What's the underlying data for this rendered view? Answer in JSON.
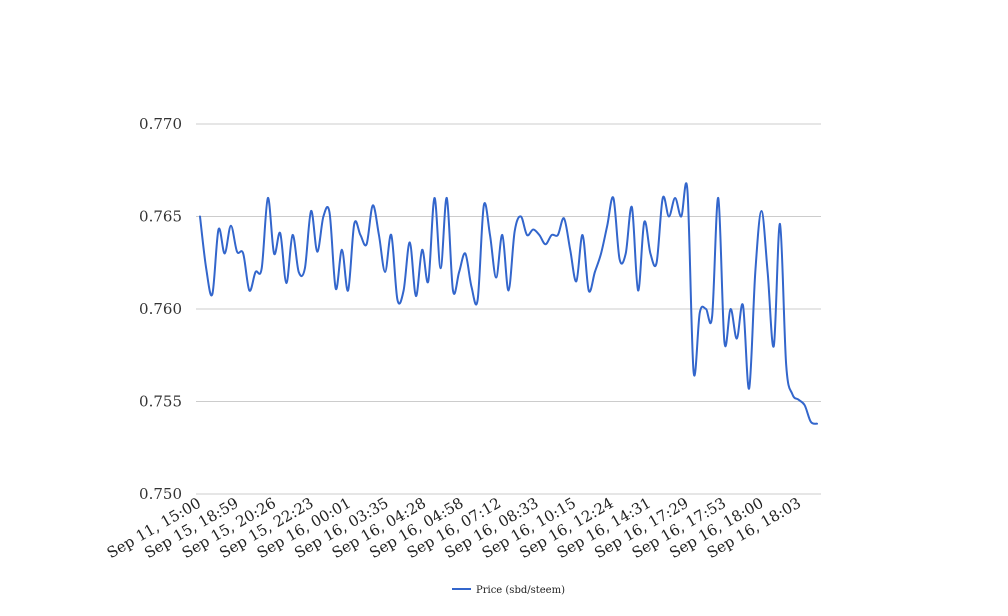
{
  "chart_data": {
    "type": "line",
    "title": "",
    "xlabel": "",
    "ylabel": "",
    "ylim": [
      0.75,
      0.77
    ],
    "yticks": [
      "0.770",
      "0.765",
      "0.760",
      "0.755",
      "0.750"
    ],
    "ytick_values": [
      0.77,
      0.765,
      0.76,
      0.755,
      0.75
    ],
    "xtick_labels": [
      "Sep 11, 15:00",
      "Sep 15, 18:59",
      "Sep 15, 20:26",
      "Sep 15, 22:23",
      "Sep 16, 00:01",
      "Sep 16, 03:35",
      "Sep 16, 04:28",
      "Sep 16, 04:58",
      "Sep 16, 07:12",
      "Sep 16, 08:33",
      "Sep 16, 10:15",
      "Sep 16, 12:24",
      "Sep 16, 14:31",
      "Sep 16, 17:29",
      "Sep 16, 17:53",
      "Sep 16, 18:00",
      "Sep 16, 18:03"
    ],
    "grid": true,
    "legend_position": "bottom",
    "series": [
      {
        "name": "Price (sbd/steem)",
        "color": "#3366cc",
        "values": [
          0.765,
          0.7622,
          0.7608,
          0.7643,
          0.763,
          0.7645,
          0.7631,
          0.763,
          0.761,
          0.762,
          0.7622,
          0.766,
          0.763,
          0.7641,
          0.7614,
          0.764,
          0.762,
          0.7622,
          0.7653,
          0.7631,
          0.765,
          0.7652,
          0.7611,
          0.7632,
          0.761,
          0.7646,
          0.764,
          0.7635,
          0.7656,
          0.764,
          0.762,
          0.764,
          0.7605,
          0.761,
          0.7636,
          0.7607,
          0.7632,
          0.7615,
          0.766,
          0.7622,
          0.766,
          0.761,
          0.762,
          0.763,
          0.7612,
          0.7605,
          0.7656,
          0.764,
          0.7617,
          0.764,
          0.761,
          0.7642,
          0.765,
          0.764,
          0.7643,
          0.764,
          0.7635,
          0.764,
          0.764,
          0.7649,
          0.7632,
          0.7615,
          0.764,
          0.761,
          0.762,
          0.763,
          0.7645,
          0.766,
          0.7627,
          0.763,
          0.7655,
          0.761,
          0.7647,
          0.763,
          0.7625,
          0.766,
          0.765,
          0.766,
          0.765,
          0.7664,
          0.7566,
          0.7598,
          0.76,
          0.7596,
          0.766,
          0.7582,
          0.76,
          0.7584,
          0.7602,
          0.7557,
          0.762,
          0.7653,
          0.762,
          0.758,
          0.7646,
          0.757,
          0.7554,
          0.7551,
          0.7548,
          0.7539,
          0.7538
        ]
      }
    ]
  }
}
